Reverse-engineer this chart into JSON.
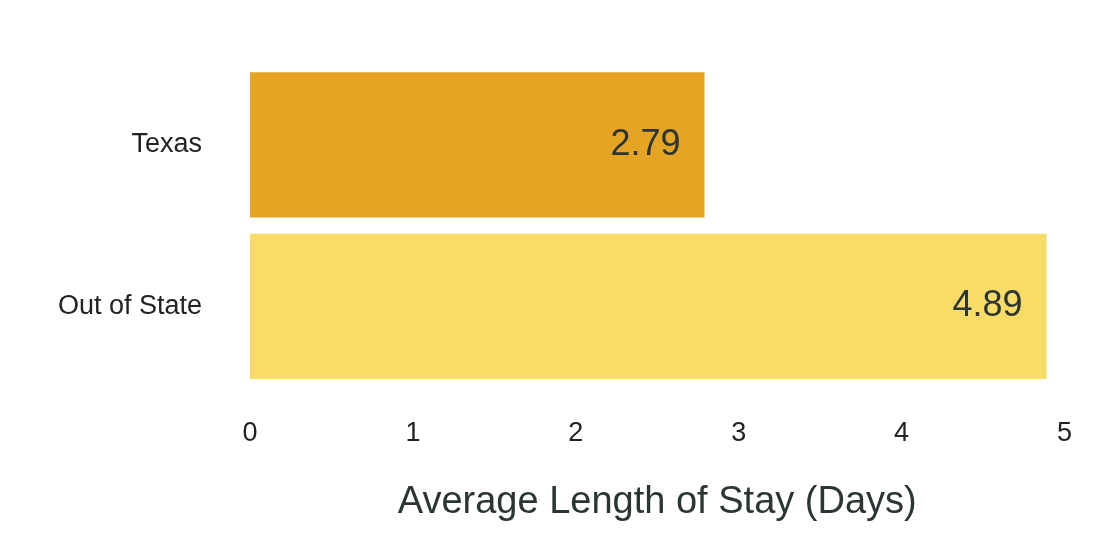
{
  "chart_data": {
    "type": "bar",
    "orientation": "horizontal",
    "categories": [
      "Texas",
      "Out of State"
    ],
    "values": [
      2.79,
      4.89
    ],
    "colors": [
      "#e5a423",
      "#f8dc66"
    ],
    "xlabel": "Average Length of Stay (Days)",
    "xlim": [
      0,
      5
    ],
    "xticks": [
      0,
      1,
      2,
      3,
      4,
      5
    ],
    "data_labels": true,
    "grid": false,
    "legend": false
  }
}
